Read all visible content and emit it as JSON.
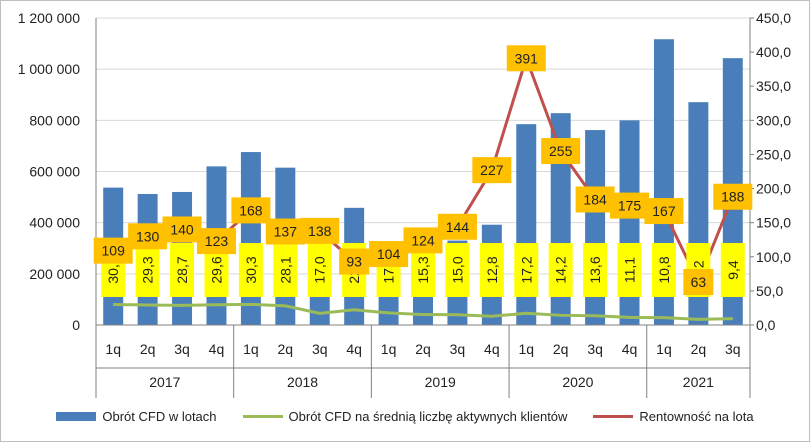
{
  "colors": {
    "bar": "#4a7ebb",
    "client_line": "#9bbb59",
    "return_line": "#c0504d",
    "label_yellow": "#ffff00",
    "label_orange": "#ffc000",
    "axis": "#808080",
    "grid": "#d9d9d9"
  },
  "chart_data": {
    "type": "bar",
    "categories": [
      "1q",
      "2q",
      "3q",
      "4q",
      "1q",
      "2q",
      "3q",
      "4q",
      "1q",
      "2q",
      "3q",
      "4q",
      "1q",
      "2q",
      "3q",
      "4q",
      "1q",
      "2q",
      "3q"
    ],
    "year_groups": [
      {
        "label": "2017",
        "count": 4
      },
      {
        "label": "2018",
        "count": 4
      },
      {
        "label": "2019",
        "count": 4
      },
      {
        "label": "2020",
        "count": 4
      },
      {
        "label": "2021",
        "count": 3
      }
    ],
    "series": [
      {
        "name": "Obrót CFD w lotach",
        "kind": "bar",
        "axis": "left",
        "values": [
          537000,
          512000,
          520000,
          620000,
          676000,
          615000,
          345000,
          458000,
          290000,
          320000,
          330000,
          392000,
          785000,
          828000,
          762000,
          800000,
          1117000,
          871000,
          1043000
        ]
      },
      {
        "name": "Obrót CFD na średnią liczbę aktywnych klientów",
        "kind": "line",
        "axis": "right",
        "values": [
          30.1,
          29.3,
          28.7,
          29.6,
          30.3,
          28.1,
          17.0,
          22.3,
          17.7,
          15.3,
          15.0,
          12.8,
          17.2,
          14.2,
          13.6,
          11.1,
          10.8,
          8.2,
          9.4
        ],
        "labels": [
          "30,1",
          "29,3",
          "28,7",
          "29,6",
          "30,3",
          "28,1",
          "17,0",
          "22,3",
          "17,7",
          "15,3",
          "15,0",
          "12,8",
          "17,2",
          "14,2",
          "13,6",
          "11,1",
          "10,8",
          "8,2",
          "9,4"
        ]
      },
      {
        "name": "Rentowność na lota",
        "kind": "line",
        "axis": "right",
        "values": [
          109,
          130,
          140,
          123,
          168,
          137,
          138,
          93,
          104,
          124,
          144,
          227,
          391,
          255,
          184,
          175,
          167,
          63,
          188
        ],
        "labels": [
          "109",
          "130",
          "140",
          "123",
          "168",
          "137",
          "138",
          "93",
          "104",
          "124",
          "144",
          "227",
          "391",
          "255",
          "184",
          "175",
          "167",
          "63",
          "188"
        ]
      }
    ],
    "y_left": {
      "min": 0,
      "max": 1200000,
      "ticks": [
        "0",
        "200 000",
        "400 000",
        "600 000",
        "800 000",
        "1 000 000",
        "1 200 000"
      ]
    },
    "y_right": {
      "min": 0,
      "max": 450,
      "ticks": [
        "0,0",
        "50,0",
        "100,0",
        "150,0",
        "200,0",
        "250,0",
        "300,0",
        "350,0",
        "400,0",
        "450,0"
      ]
    },
    "grid": true,
    "legend_position": "bottom"
  }
}
